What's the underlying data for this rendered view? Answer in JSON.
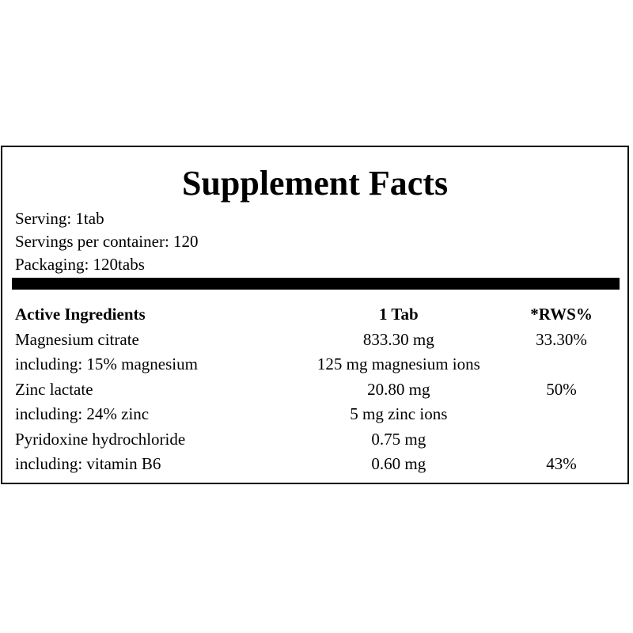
{
  "header": {
    "title": "Supplement Facts"
  },
  "info": [
    "Serving: 1tab",
    "Servings per container: 120",
    "Packaging: 120tabs"
  ],
  "table": {
    "columns": [
      "Active Ingredients",
      "1 Tab",
      "*RWS%"
    ],
    "rows": [
      [
        "Magnesium citrate",
        "833.30 mg",
        "33.30%"
      ],
      [
        "including: 15% magnesium",
        "125 mg magnesium ions",
        null
      ],
      [
        "Zinc lactate",
        "20.80 mg",
        "50%"
      ],
      [
        "including: 24% zinc",
        "5 mg zinc ions",
        null
      ],
      [
        "Pyridoxine hydrochloride",
        "0.75 mg",
        null
      ],
      [
        "including: vitamin B6",
        "0.60 mg",
        "43%"
      ]
    ]
  }
}
